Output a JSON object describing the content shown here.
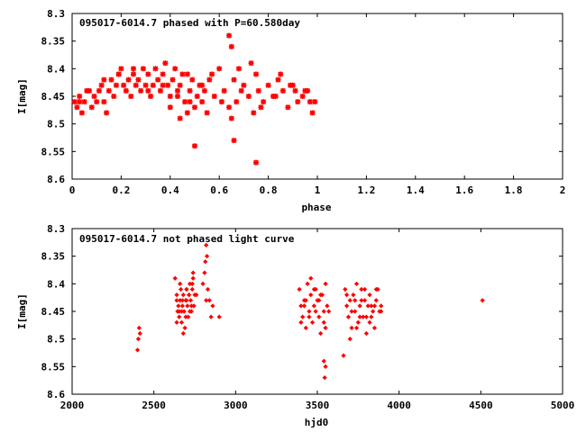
{
  "chart_data": [
    {
      "type": "scatter",
      "title": "095017-6014.7 phased with P=60.580day",
      "xlabel": "phase",
      "ylabel": "I[mag]",
      "xlim": [
        0,
        2
      ],
      "ylim": [
        8.6,
        8.3
      ],
      "y_inverted": true,
      "xticks": [
        "0",
        "0.2",
        "0.4",
        "0.6",
        "0.8",
        "1",
        "1.2",
        "1.4",
        "1.6",
        "1.8",
        "2"
      ],
      "yticks": [
        "8.3",
        "8.35",
        "8.4",
        "8.45",
        "8.5",
        "8.55",
        "8.6"
      ],
      "marker_color": "#ff0000",
      "grid": false,
      "series": [
        {
          "x": [
            0.01,
            0.02,
            0.03,
            0.04,
            0.05,
            0.06,
            0.08,
            0.09,
            0.1,
            0.11,
            0.12,
            0.13,
            0.14,
            0.15,
            0.16,
            0.17,
            0.18,
            0.19,
            0.2,
            0.21,
            0.22,
            0.23,
            0.24,
            0.25,
            0.26,
            0.27,
            0.28,
            0.29,
            0.3,
            0.31,
            0.32,
            0.33,
            0.34,
            0.35,
            0.36,
            0.37,
            0.38,
            0.39,
            0.4,
            0.41,
            0.42,
            0.43,
            0.44,
            0.45,
            0.46,
            0.47,
            0.48,
            0.49,
            0.5,
            0.51,
            0.52,
            0.53,
            0.54,
            0.55,
            0.56,
            0.58,
            0.6,
            0.62,
            0.64,
            0.65,
            0.66,
            0.67,
            0.68,
            0.7,
            0.72,
            0.74,
            0.75,
            0.76,
            0.78,
            0.8,
            0.82,
            0.84,
            0.86,
            0.88,
            0.9,
            0.92,
            0.94,
            0.96,
            0.98,
            0.99,
            0.03,
            0.07,
            0.13,
            0.19,
            0.25,
            0.31,
            0.37,
            0.43,
            0.47,
            0.53,
            0.61,
            0.69,
            0.77,
            0.83,
            0.89,
            0.95,
            0.5,
            0.66,
            0.75,
            0.64,
            0.65,
            0.4,
            0.44,
            0.48,
            0.57,
            0.73,
            0.85,
            0.91,
            0.97
          ],
          "y": [
            8.46,
            8.47,
            8.45,
            8.48,
            8.46,
            8.44,
            8.47,
            8.45,
            8.46,
            8.44,
            8.43,
            8.46,
            8.48,
            8.44,
            8.42,
            8.45,
            8.43,
            8.41,
            8.4,
            8.43,
            8.44,
            8.42,
            8.45,
            8.41,
            8.43,
            8.42,
            8.44,
            8.4,
            8.43,
            8.41,
            8.45,
            8.43,
            8.4,
            8.42,
            8.44,
            8.41,
            8.39,
            8.43,
            8.45,
            8.42,
            8.4,
            8.44,
            8.43,
            8.41,
            8.46,
            8.48,
            8.44,
            8.42,
            8.47,
            8.45,
            8.43,
            8.46,
            8.44,
            8.48,
            8.42,
            8.45,
            8.4,
            8.44,
            8.47,
            8.49,
            8.42,
            8.46,
            8.4,
            8.43,
            8.45,
            8.48,
            8.41,
            8.44,
            8.46,
            8.43,
            8.45,
            8.42,
            8.44,
            8.47,
            8.43,
            8.46,
            8.45,
            8.44,
            8.48,
            8.46,
            8.46,
            8.44,
            8.42,
            8.41,
            8.4,
            8.44,
            8.43,
            8.45,
            8.41,
            8.43,
            8.46,
            8.44,
            8.47,
            8.45,
            8.43,
            8.44,
            8.54,
            8.53,
            8.57,
            8.34,
            8.36,
            8.47,
            8.49,
            8.46,
            8.41,
            8.39,
            8.41,
            8.44,
            8.46
          ]
        }
      ]
    },
    {
      "type": "scatter",
      "title": "095017-6014.7 not phased light curve",
      "xlabel": "hjd0",
      "ylabel": "I[mag]",
      "xlim": [
        2000,
        5000
      ],
      "ylim": [
        8.6,
        8.3
      ],
      "y_inverted": true,
      "xticks": [
        "2000",
        "2500",
        "3000",
        "3500",
        "4000",
        "4500",
        "5000"
      ],
      "yticks": [
        "8.3",
        "8.35",
        "8.4",
        "8.45",
        "8.5",
        "8.55",
        "8.6"
      ],
      "marker_color": "#ff0000",
      "grid": false,
      "series": [
        {
          "x": [
            2400,
            2405,
            2410,
            2415,
            2630,
            2640,
            2645,
            2650,
            2655,
            2660,
            2665,
            2670,
            2675,
            2680,
            2685,
            2690,
            2695,
            2700,
            2705,
            2710,
            2715,
            2720,
            2725,
            2730,
            2735,
            2740,
            2745,
            2750,
            2640,
            2660,
            2680,
            2700,
            2720,
            2740,
            2655,
            2675,
            2695,
            2715,
            2735,
            2800,
            2810,
            2815,
            2820,
            2825,
            2830,
            2840,
            2850,
            2860,
            2900,
            2820,
            2640,
            2670,
            2700,
            2730,
            2760,
            3390,
            3400,
            3410,
            3420,
            3430,
            3440,
            3450,
            3460,
            3470,
            3480,
            3490,
            3500,
            3510,
            3520,
            3530,
            3540,
            3550,
            3560,
            3400,
            3430,
            3460,
            3490,
            3520,
            3550,
            3420,
            3450,
            3480,
            3510,
            3540,
            3570,
            3540,
            3545,
            3550,
            3670,
            3680,
            3690,
            3700,
            3710,
            3720,
            3730,
            3740,
            3750,
            3760,
            3770,
            3780,
            3790,
            3800,
            3810,
            3820,
            3830,
            3840,
            3850,
            3860,
            3870,
            3880,
            3890,
            3700,
            3730,
            3760,
            3790,
            3820,
            3850,
            3680,
            3710,
            3740,
            3770,
            3800,
            3830,
            3860,
            3890,
            3660,
            4510
          ],
          "y": [
            8.52,
            8.5,
            8.48,
            8.49,
            8.39,
            8.42,
            8.45,
            8.44,
            8.46,
            8.43,
            8.41,
            8.47,
            8.44,
            8.42,
            8.45,
            8.48,
            8.43,
            8.41,
            8.44,
            8.46,
            8.42,
            8.4,
            8.43,
            8.45,
            8.41,
            8.39,
            8.44,
            8.42,
            8.47,
            8.4,
            8.49,
            8.43,
            8.45,
            8.38,
            8.45,
            8.43,
            8.46,
            8.42,
            8.4,
            8.4,
            8.38,
            8.36,
            8.33,
            8.35,
            8.41,
            8.43,
            8.46,
            8.44,
            8.46,
            8.43,
            8.43,
            8.45,
            8.41,
            8.44,
            8.42,
            8.41,
            8.44,
            8.46,
            8.43,
            8.48,
            8.4,
            8.45,
            8.42,
            8.47,
            8.44,
            8.41,
            8.43,
            8.46,
            8.49,
            8.42,
            8.45,
            8.4,
            8.44,
            8.47,
            8.43,
            8.39,
            8.45,
            8.42,
            8.48,
            8.44,
            8.46,
            8.41,
            8.43,
            8.47,
            8.45,
            8.54,
            8.57,
            8.55,
            8.41,
            8.44,
            8.46,
            8.43,
            8.48,
            8.42,
            8.45,
            8.4,
            8.47,
            8.44,
            8.41,
            8.46,
            8.43,
            8.49,
            8.44,
            8.42,
            8.46,
            8.45,
            8.48,
            8.43,
            8.41,
            8.45,
            8.44,
            8.5,
            8.43,
            8.46,
            8.41,
            8.47,
            8.44,
            8.42,
            8.45,
            8.48,
            8.43,
            8.46,
            8.44,
            8.41,
            8.45,
            8.53,
            8.43
          ]
        }
      ]
    }
  ]
}
